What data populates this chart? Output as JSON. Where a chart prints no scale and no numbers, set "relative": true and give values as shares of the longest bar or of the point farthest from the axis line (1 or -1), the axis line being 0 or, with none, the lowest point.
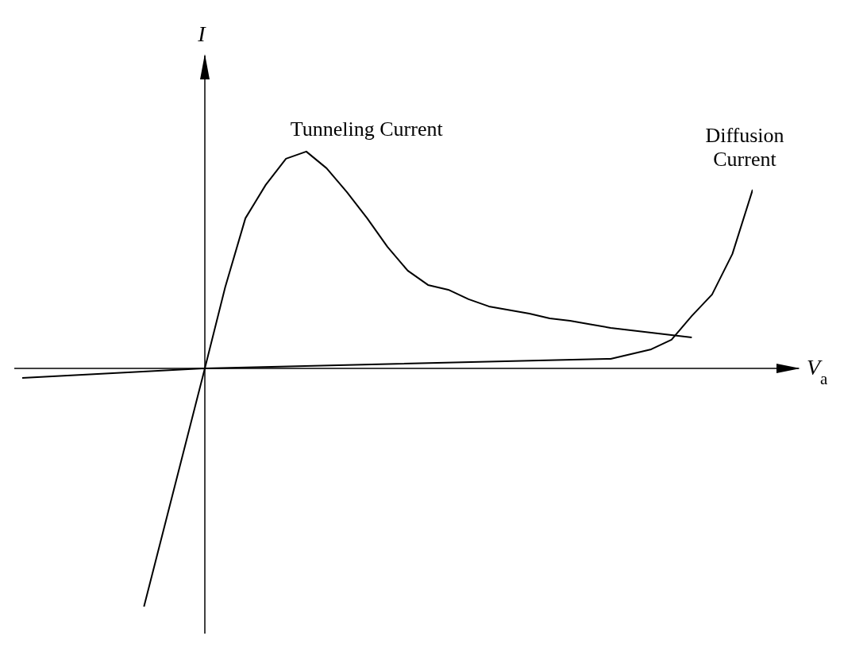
{
  "chart_data": {
    "type": "line",
    "relative": true,
    "xlabel": "V$_{a}$",
    "ylabel": "I",
    "tick_labels": false,
    "grid": false,
    "legend": false,
    "marker": "none",
    "line_style": "solid",
    "categories": [
      null,
      null,
      null,
      null,
      null,
      null,
      null,
      null,
      null,
      null,
      null,
      null,
      null,
      null,
      null,
      null,
      null,
      null,
      null,
      null,
      null,
      null,
      null,
      null,
      null,
      null,
      null,
      null,
      null,
      null,
      null,
      null,
      null,
      null,
      null,
      null,
      null
    ],
    "series": [
      {
        "name": "Tunneling Current",
        "color": "#000000",
        "values": [
          null,
          null,
          null,
          null,
          null,
          null,
          -1,
          null,
          null,
          0,
          0.34,
          0.63,
          0.77,
          0.88,
          0.91,
          0.84,
          0.74,
          0.63,
          0.51,
          0.41,
          0.35,
          0.33,
          0.29,
          0.26,
          0.245,
          0.23,
          0.21,
          0.2,
          0.185,
          0.17,
          0.16,
          0.15,
          0.14,
          0.13,
          null,
          null,
          null
        ]
      },
      {
        "name": "Diffusion Current",
        "color": "#000000",
        "values": [
          -0.04,
          null,
          null,
          null,
          null,
          null,
          null,
          null,
          null,
          0,
          null,
          null,
          null,
          null,
          null,
          null,
          null,
          null,
          null,
          null,
          null,
          null,
          null,
          null,
          null,
          null,
          null,
          null,
          null,
          0.04,
          null,
          0.08,
          0.12,
          0.22,
          0.31,
          0.48,
          0.75
        ]
      }
    ]
  }
}
